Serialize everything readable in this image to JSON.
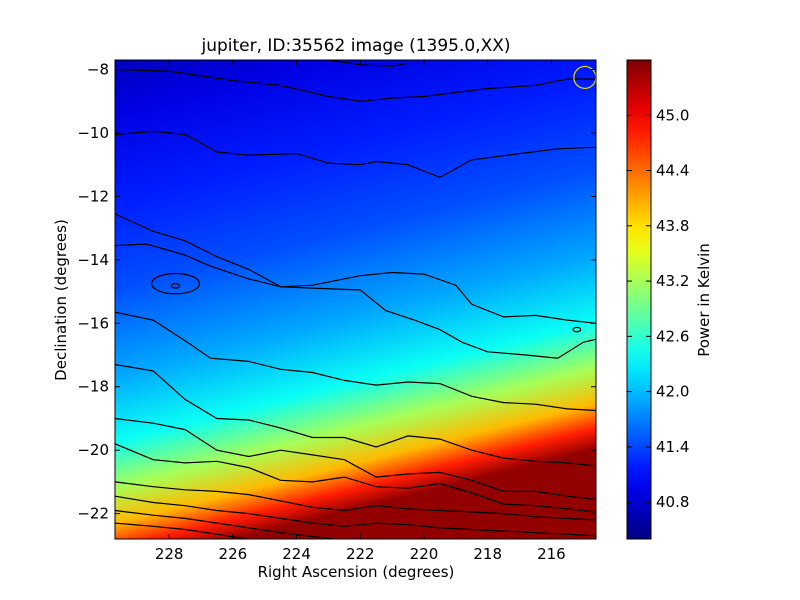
{
  "chart_data": {
    "type": "heatmap",
    "title": "jupiter, ID:35562 image (1395.0,XX)",
    "xlabel": "Right Ascension (degrees)",
    "ylabel": "Declination (degrees)",
    "colorbar_label": "Power in Kelvin",
    "xlim": [
      229.7,
      214.6
    ],
    "ylim": [
      -22.8,
      -7.7
    ],
    "x_ticks": [
      228,
      226,
      224,
      222,
      220,
      218,
      216
    ],
    "y_ticks": [
      -8,
      -10,
      -12,
      -14,
      -16,
      -18,
      -20,
      -22
    ],
    "colorbar_range": [
      40.4,
      45.6
    ],
    "colorbar_ticks": [
      40.8,
      41.4,
      42.0,
      42.6,
      43.2,
      43.8,
      44.4,
      45.0
    ],
    "colormap": "jet",
    "contour_color": "#000000",
    "grid": false,
    "markers": [
      {
        "type": "circle",
        "x": 214.95,
        "y": -8.25,
        "color": "#e8e000"
      }
    ],
    "contours": [
      {
        "level": 40.75,
        "points": [
          [
            223.0,
            -7.7
          ],
          [
            222.0,
            -7.85
          ],
          [
            221.0,
            -7.9
          ],
          [
            220.5,
            -7.8
          ]
        ]
      },
      {
        "level": 40.85,
        "points": [
          [
            229.7,
            -8.0
          ],
          [
            228,
            -8.05
          ],
          [
            226,
            -8.35
          ],
          [
            224.5,
            -8.5
          ],
          [
            223,
            -8.85
          ],
          [
            222,
            -9.0
          ],
          [
            221,
            -8.9
          ],
          [
            220,
            -8.85
          ],
          [
            218,
            -8.6
          ],
          [
            216.5,
            -8.5
          ],
          [
            215.5,
            -8.3
          ],
          [
            214.6,
            -8.3
          ]
        ]
      },
      {
        "level": 41.0,
        "points": [
          [
            229.7,
            -10.05
          ],
          [
            228.5,
            -9.95
          ],
          [
            227.5,
            -10.05
          ],
          [
            226.5,
            -10.6
          ],
          [
            225.5,
            -10.7
          ],
          [
            224,
            -10.65
          ],
          [
            223,
            -10.95
          ],
          [
            222,
            -11.0
          ],
          [
            221.5,
            -10.9
          ],
          [
            220.5,
            -11.0
          ],
          [
            219.5,
            -11.4
          ],
          [
            218.5,
            -10.85
          ],
          [
            217,
            -10.65
          ],
          [
            215.8,
            -10.5
          ],
          [
            214.6,
            -10.45
          ]
        ]
      },
      {
        "level": 41.2,
        "points": [
          [
            229.7,
            -12.55
          ],
          [
            228.5,
            -13.1
          ],
          [
            227.5,
            -13.4
          ],
          [
            226.5,
            -13.9
          ],
          [
            225.5,
            -14.3
          ],
          [
            224.5,
            -14.85
          ],
          [
            223.5,
            -14.8
          ],
          [
            222,
            -14.5
          ],
          [
            221,
            -14.4
          ],
          [
            220,
            -14.45
          ],
          [
            219,
            -14.8
          ],
          [
            218.5,
            -15.4
          ],
          [
            217.5,
            -15.8
          ],
          [
            216.5,
            -15.75
          ],
          [
            215.5,
            -15.9
          ],
          [
            214.6,
            -16.0
          ]
        ]
      },
      {
        "level": 41.35,
        "points": [
          [
            229.7,
            -13.55
          ],
          [
            228.7,
            -13.5
          ],
          [
            227.5,
            -13.85
          ],
          [
            226.7,
            -14.2
          ],
          [
            225.5,
            -14.6
          ],
          [
            224.5,
            -14.85
          ],
          [
            223.3,
            -14.9
          ],
          [
            222,
            -14.95
          ],
          [
            221.2,
            -15.6
          ],
          [
            220.3,
            -15.9
          ],
          [
            219.5,
            -16.2
          ],
          [
            218.8,
            -16.6
          ],
          [
            218,
            -16.9
          ],
          [
            216.8,
            -17.0
          ],
          [
            215.8,
            -17.1
          ],
          [
            215.0,
            -16.6
          ],
          [
            214.6,
            -16.5
          ]
        ]
      },
      {
        "level": 41.7,
        "points": [
          [
            229.7,
            -15.65
          ],
          [
            228.5,
            -15.9
          ],
          [
            227.5,
            -16.55
          ],
          [
            226.7,
            -17.1
          ],
          [
            225.5,
            -17.2
          ],
          [
            224.5,
            -17.45
          ],
          [
            223.5,
            -17.55
          ],
          [
            222.5,
            -17.8
          ],
          [
            221.5,
            -17.95
          ],
          [
            220.5,
            -17.85
          ],
          [
            219.5,
            -17.9
          ],
          [
            218.5,
            -18.3
          ],
          [
            217.5,
            -18.5
          ],
          [
            216.5,
            -18.55
          ],
          [
            215.5,
            -18.7
          ],
          [
            214.6,
            -18.75
          ]
        ]
      },
      {
        "level": 42.0,
        "points": [
          [
            229.7,
            -17.3
          ],
          [
            228.5,
            -17.5
          ],
          [
            227.5,
            -18.4
          ],
          [
            226.5,
            -19.0
          ],
          [
            225.5,
            -19.05
          ],
          [
            224.5,
            -19.3
          ],
          [
            223.5,
            -19.6
          ],
          [
            222.5,
            -19.6
          ],
          [
            221.5,
            -19.9
          ],
          [
            220.5,
            -19.55
          ],
          [
            219.5,
            -19.65
          ],
          [
            218.5,
            -20.0
          ],
          [
            217.5,
            -20.25
          ],
          [
            216.5,
            -20.35
          ],
          [
            215.5,
            -20.4
          ],
          [
            214.6,
            -20.5
          ]
        ]
      },
      {
        "level": 42.4,
        "points": [
          [
            229.7,
            -19.0
          ],
          [
            228.5,
            -19.15
          ],
          [
            227.5,
            -19.35
          ],
          [
            226.5,
            -20.0
          ],
          [
            225.5,
            -20.2
          ],
          [
            224.5,
            -20.0
          ],
          [
            223.5,
            -20.15
          ],
          [
            222.5,
            -20.3
          ],
          [
            221.5,
            -20.85
          ],
          [
            220.5,
            -20.75
          ],
          [
            219.5,
            -20.7
          ],
          [
            218.5,
            -20.95
          ],
          [
            217.5,
            -21.3
          ],
          [
            216.5,
            -21.3
          ],
          [
            215.5,
            -21.45
          ],
          [
            214.6,
            -21.55
          ]
        ]
      },
      {
        "level": 42.8,
        "points": [
          [
            229.7,
            -19.8
          ],
          [
            228.5,
            -20.3
          ],
          [
            227.5,
            -20.4
          ],
          [
            226.5,
            -20.35
          ],
          [
            225.5,
            -20.55
          ],
          [
            224.5,
            -20.95
          ],
          [
            223.5,
            -21.0
          ],
          [
            222.5,
            -20.85
          ],
          [
            221.5,
            -21.15
          ],
          [
            220.5,
            -21.2
          ],
          [
            219.5,
            -21.05
          ],
          [
            218.5,
            -21.35
          ],
          [
            217.5,
            -21.7
          ],
          [
            216.5,
            -21.75
          ],
          [
            215.5,
            -21.85
          ],
          [
            214.6,
            -21.95
          ]
        ]
      },
      {
        "level": 43.4,
        "points": [
          [
            229.7,
            -21.0
          ],
          [
            228.5,
            -21.15
          ],
          [
            227.5,
            -21.25
          ],
          [
            226.5,
            -21.3
          ],
          [
            225.5,
            -21.4
          ],
          [
            224.5,
            -21.6
          ],
          [
            223.5,
            -21.8
          ],
          [
            222.5,
            -21.9
          ],
          [
            221.5,
            -21.75
          ],
          [
            220.5,
            -21.85
          ],
          [
            219.5,
            -21.9
          ],
          [
            218.5,
            -21.95
          ],
          [
            217.5,
            -22.0
          ],
          [
            216.5,
            -22.1
          ],
          [
            215.5,
            -22.15
          ],
          [
            214.6,
            -22.2
          ]
        ]
      },
      {
        "level": 44.0,
        "points": [
          [
            229.7,
            -21.45
          ],
          [
            228.5,
            -21.65
          ],
          [
            227.5,
            -21.75
          ],
          [
            226.5,
            -21.9
          ],
          [
            225.5,
            -22.0
          ],
          [
            224.5,
            -22.15
          ],
          [
            223.5,
            -22.3
          ],
          [
            222.5,
            -22.4
          ],
          [
            221.5,
            -22.3
          ],
          [
            220.5,
            -22.35
          ],
          [
            219.5,
            -22.45
          ],
          [
            218.5,
            -22.5
          ],
          [
            217.5,
            -22.55
          ],
          [
            216.5,
            -22.6
          ],
          [
            215.5,
            -22.65
          ],
          [
            214.6,
            -22.7
          ]
        ]
      },
      {
        "level": 44.6,
        "points": [
          [
            229.7,
            -21.9
          ],
          [
            228.5,
            -22.05
          ],
          [
            227.5,
            -22.15
          ],
          [
            226.5,
            -22.3
          ],
          [
            225.5,
            -22.45
          ],
          [
            224.5,
            -22.6
          ],
          [
            223.5,
            -22.72
          ],
          [
            222.8,
            -22.8
          ]
        ]
      },
      {
        "level": 45.1,
        "points": [
          [
            229.7,
            -22.3
          ],
          [
            228.5,
            -22.4
          ],
          [
            227.5,
            -22.5
          ],
          [
            226.5,
            -22.65
          ],
          [
            225.6,
            -22.8
          ]
        ]
      }
    ],
    "closed_contours": [
      {
        "level": 41.2,
        "cx": 227.8,
        "cy": -14.75,
        "rx": 0.75,
        "ry": 0.32
      },
      {
        "level": 41.0,
        "cx": 227.8,
        "cy": -14.82,
        "rx": 0.13,
        "ry": 0.07
      },
      {
        "level": 41.35,
        "cx": 215.2,
        "cy": -16.2,
        "rx": 0.12,
        "ry": 0.07
      }
    ]
  }
}
